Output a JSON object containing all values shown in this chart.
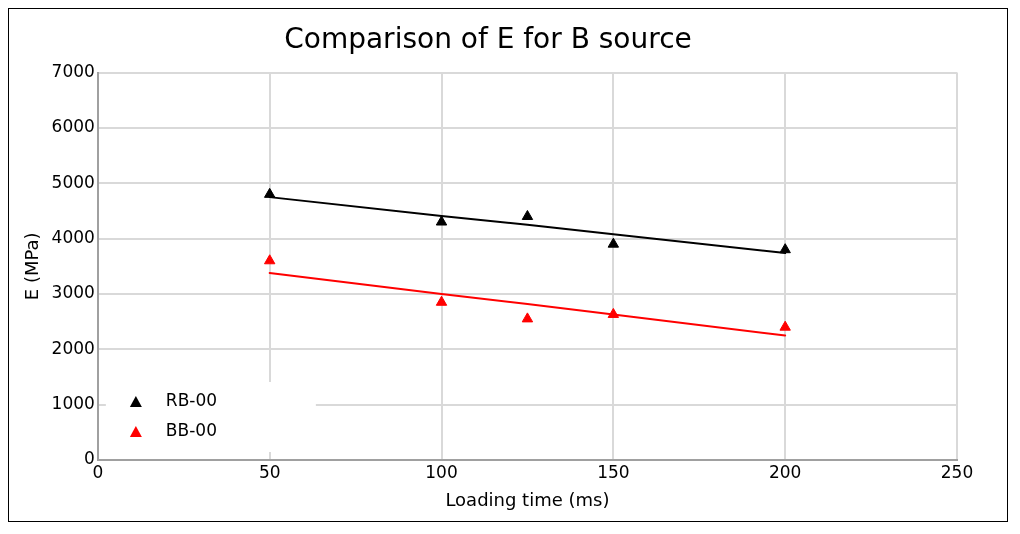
{
  "chart_data": {
    "type": "scatter",
    "title": "Comparison of E for B source",
    "xlabel": "Loading time (ms)",
    "ylabel": "E (MPa)",
    "x": [
      50,
      100,
      125,
      150,
      200
    ],
    "series": [
      {
        "name": "RB-00",
        "color": "#000000",
        "marker": "triangle",
        "values": [
          4800,
          4300,
          4400,
          3900,
          3800
        ]
      },
      {
        "name": "BB-00",
        "color": "#ff0000",
        "marker": "triangle",
        "values": [
          3600,
          2850,
          2550,
          2630,
          2400
        ]
      },
      {
        "type": "line",
        "color": "#000000",
        "marker": "none",
        "values": [
          4750,
          4410,
          4250,
          4080,
          3740
        ]
      },
      {
        "type": "line",
        "color": "#ff0000",
        "marker": "none",
        "values": [
          3380,
          3000,
          2820,
          2630,
          2250
        ]
      }
    ],
    "xlim": [
      0,
      250
    ],
    "xticks": [
      0,
      50,
      100,
      150,
      200,
      250
    ],
    "ylim": [
      0,
      7000
    ],
    "yticks": [
      0,
      1000,
      2000,
      3000,
      4000,
      5000,
      6000,
      7000
    ],
    "grid": true,
    "legend": "bottom left",
    "line_style": "solid"
  }
}
